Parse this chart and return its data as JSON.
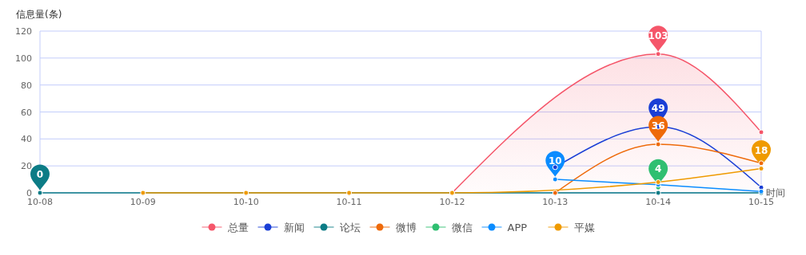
{
  "chart_data": {
    "type": "line",
    "ylabel": "信息量(条)",
    "xlabel": "时间",
    "categories": [
      "10-08",
      "10-09",
      "10-10",
      "10-11",
      "10-12",
      "10-13",
      "10-14",
      "10-15"
    ],
    "ylim": [
      0,
      120
    ],
    "yticks": [
      0,
      20,
      40,
      60,
      80,
      100,
      120
    ],
    "grid": "y",
    "legend": "bottom",
    "marker": "circle",
    "line_style": "solid",
    "series": [
      {
        "name": "总量",
        "color": "#f5566a",
        "type": "area",
        "values": [
          null,
          null,
          null,
          null,
          0,
          null,
          103,
          45
        ],
        "value_labels": [
          null,
          null,
          null,
          null,
          null,
          null,
          "103",
          null
        ]
      },
      {
        "name": "新闻",
        "color": "#1a3fd6",
        "values": [
          null,
          null,
          null,
          null,
          null,
          19,
          49,
          4
        ],
        "value_labels": [
          null,
          null,
          null,
          null,
          null,
          null,
          "49",
          null
        ]
      },
      {
        "name": "论坛",
        "color": "#0c7c86",
        "values": [
          0,
          null,
          null,
          null,
          null,
          null,
          0,
          0
        ],
        "value_labels": [
          "0",
          null,
          null,
          null,
          null,
          null,
          null,
          null
        ]
      },
      {
        "name": "微博",
        "color": "#ee6a0a",
        "values": [
          null,
          null,
          null,
          null,
          null,
          0,
          36,
          22
        ],
        "value_labels": [
          null,
          null,
          null,
          null,
          null,
          null,
          "36",
          null
        ]
      },
      {
        "name": "微信",
        "color": "#2fbf71",
        "values": [
          null,
          null,
          null,
          null,
          null,
          null,
          4,
          null
        ],
        "value_labels": [
          null,
          null,
          null,
          null,
          null,
          null,
          "4",
          null
        ]
      },
      {
        "name": "APP",
        "color": "#0a8cff",
        "values": [
          null,
          null,
          null,
          null,
          null,
          10,
          6,
          1
        ],
        "value_labels": [
          null,
          null,
          null,
          null,
          null,
          "10",
          null,
          null
        ]
      },
      {
        "name": "平媒",
        "color": "#ef9a00",
        "values": [
          null,
          0,
          0,
          0,
          0,
          null,
          8,
          18
        ],
        "value_labels": [
          null,
          null,
          null,
          null,
          null,
          null,
          null,
          "18"
        ]
      }
    ]
  }
}
